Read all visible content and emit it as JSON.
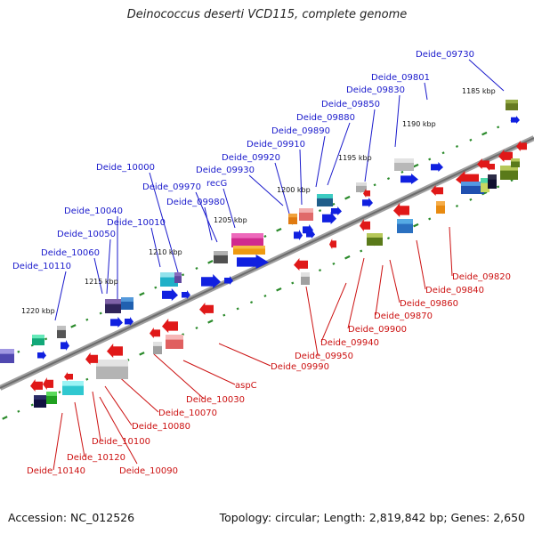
{
  "title": "Deinococcus deserti VCD115, complete genome",
  "footer": {
    "accession": "Accession: NC_012526",
    "summary": "Topology: circular; Length: 2,819,842 bp; Genes: 2,650"
  },
  "colors": {
    "forward_label": "#1a1acc",
    "reverse_label": "#cc1111",
    "forward_gene": "#1020e0",
    "reverse_gene": "#e01818",
    "backbone": "#7a7a7a",
    "tick": "#2a8a2a"
  },
  "kbp_ticks": [
    "1185 kbp",
    "1190 kbp",
    "1195 kbp",
    "1200 kbp",
    "1205 kbp",
    "1210 kbp",
    "1215 kbp",
    "1220 kbp"
  ],
  "forward_labels": [
    "Deide_09730",
    "Deide_09801",
    "Deide_09830",
    "Deide_09850",
    "Deide_09880",
    "Deide_09890",
    "Deide_09910",
    "Deide_09920",
    "Deide_09930",
    "recG",
    "Deide_09970",
    "Deide_09980",
    "Deide_10000",
    "Deide_10010",
    "Deide_10040",
    "Deide_10050",
    "Deide_10060",
    "Deide_10110"
  ],
  "reverse_labels": [
    "Deide_09820",
    "Deide_09840",
    "Deide_09860",
    "Deide_09870",
    "Deide_09900",
    "Deide_09940",
    "Deide_09950",
    "Deide_09990",
    "aspC",
    "Deide_10030",
    "Deide_10070",
    "Deide_10080",
    "Deide_10100",
    "Deide_10090",
    "Deide_10120",
    "Deide_10140"
  ]
}
